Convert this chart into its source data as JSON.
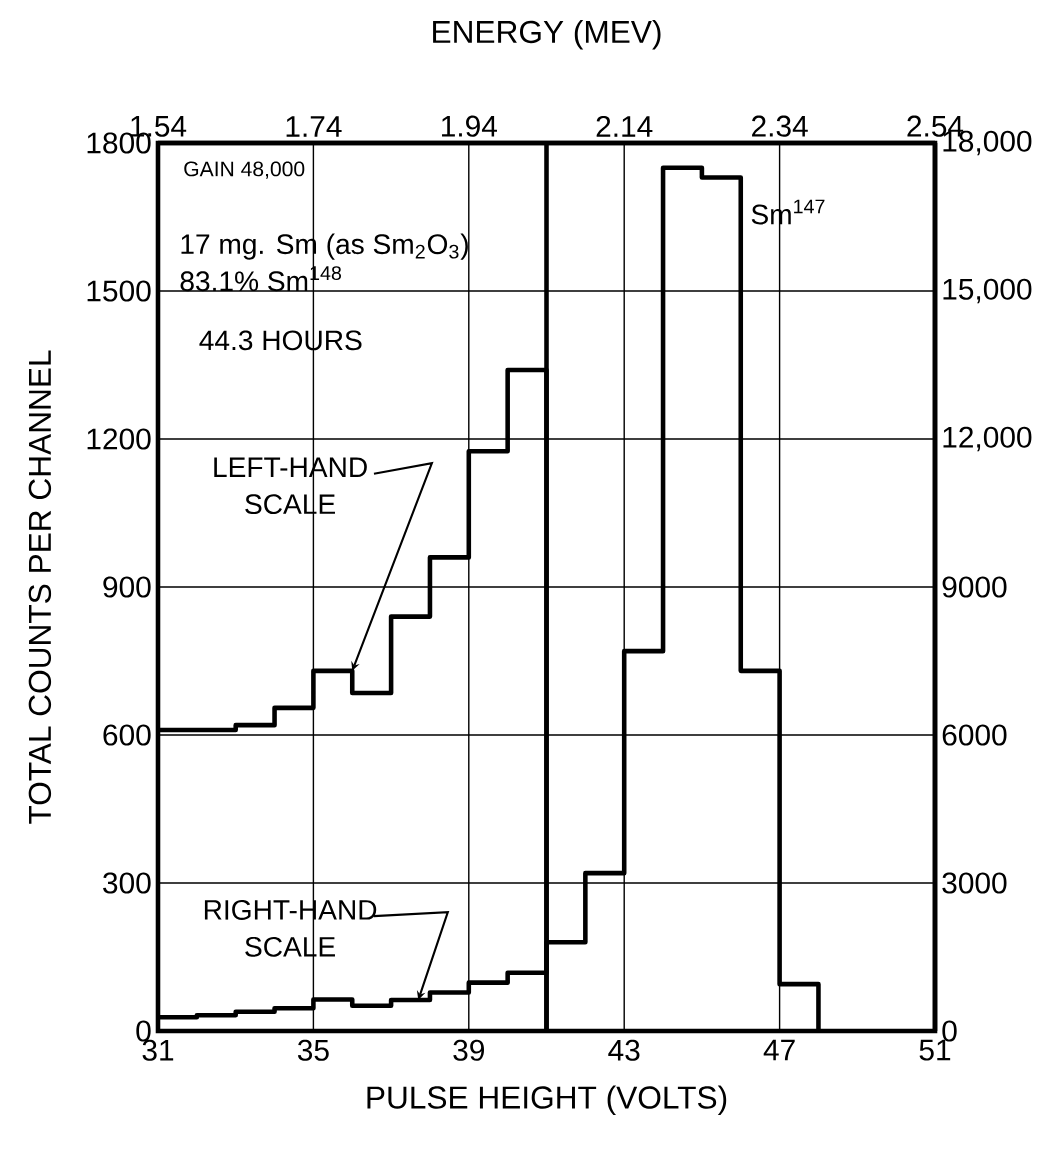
{
  "chart_data": {
    "type": "step",
    "x2label": "ENERGY (MEV)",
    "xlabel": "PULSE HEIGHT (VOLTS)",
    "ylabel": "TOTAL COUNTS PER CHANNEL",
    "xlim": [
      31,
      51
    ],
    "xticks": [
      31,
      35,
      39,
      43,
      47,
      51
    ],
    "x2lim": [
      1.54,
      2.54
    ],
    "x2ticks": [
      1.54,
      1.74,
      1.94,
      2.14,
      2.34,
      2.54
    ],
    "ylim": [
      0,
      1800
    ],
    "yticks": [
      0,
      300,
      600,
      900,
      1200,
      1500,
      1800
    ],
    "y2lim": [
      0,
      18000
    ],
    "y2ticks": [
      0,
      3000,
      6000,
      9000,
      {
        "value": 12000,
        "label": "12,000"
      },
      {
        "value": 15000,
        "label": "15,000"
      },
      {
        "value": 18000,
        "label": "18,000"
      }
    ],
    "grid": true,
    "ref_lines": [
      {
        "axis": "x",
        "value": 41,
        "color": "#000000"
      }
    ],
    "series": [
      {
        "color": "#000000",
        "x": [
          31,
          32,
          33,
          34,
          35,
          36,
          37,
          38,
          39,
          40,
          41
        ],
        "values": [
          610,
          610,
          620,
          655,
          730,
          685,
          840,
          960,
          1175,
          1340,
          0
        ]
      },
      {
        "color": "#000000",
        "axis": "y2",
        "x": [
          31,
          32,
          33,
          34,
          35,
          36,
          37,
          38,
          39,
          40,
          41,
          42,
          43,
          44,
          45,
          46,
          47,
          48
        ],
        "values": [
          280,
          320,
          390,
          460,
          640,
          510,
          630,
          780,
          980,
          1180,
          1800,
          3200,
          7700,
          17500,
          17300,
          7300,
          950,
          0
        ]
      }
    ],
    "annotations": [
      "GAIN  48,000",
      "17 mg.  Sm (as  Sm$_{2}$O$_{3}$)",
      "83.1%  Sm$^{148}$",
      "44.3  HOURS",
      {
        "text": "LEFT-HAND SCALE",
        "x": 36,
        "y": 730
      },
      {
        "text": "RIGHT-HAND SCALE",
        "x": 37.7,
        "y": 63
      },
      "Sm$^{147}$"
    ]
  }
}
